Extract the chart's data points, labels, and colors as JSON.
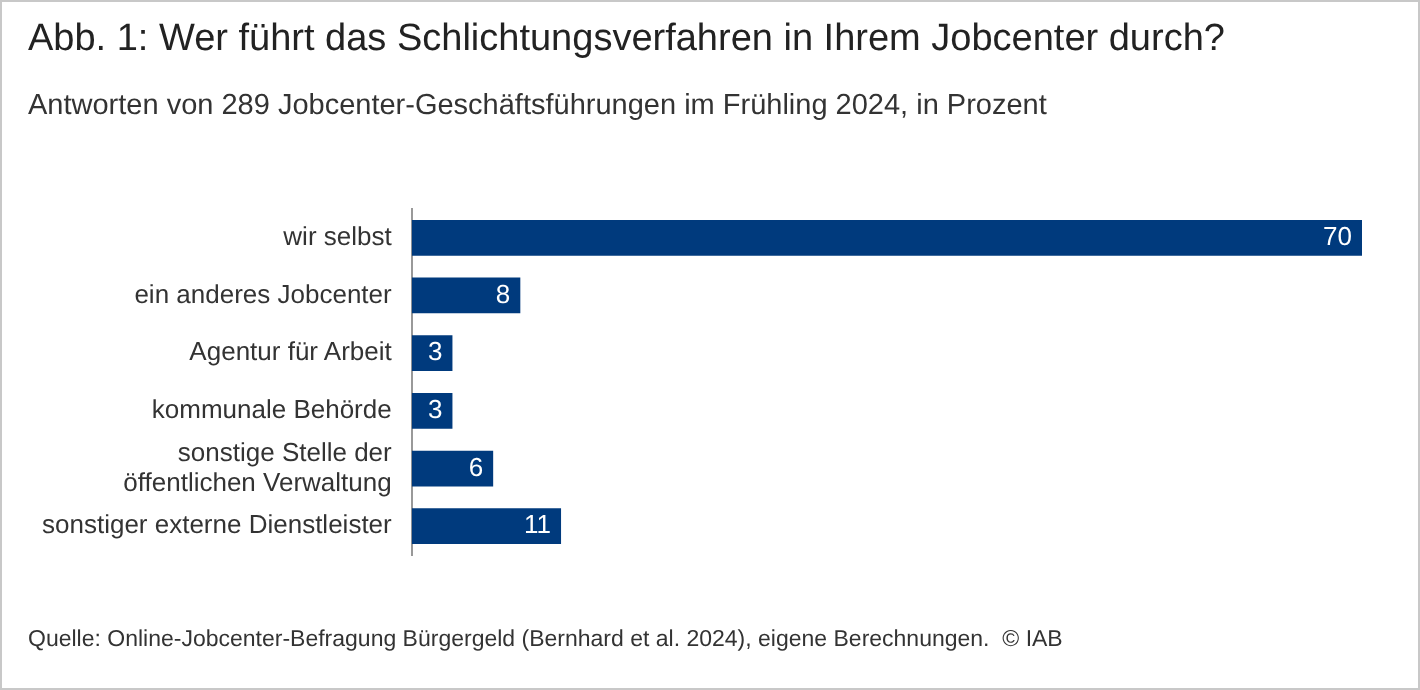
{
  "chart_data": {
    "type": "bar",
    "orientation": "horizontal",
    "title": "Abb. 1: Wer führt das Schlichtungsverfahren in Ihrem Jobcenter durch?",
    "subtitle": "Antworten von 289 Jobcenter-Geschäftsführungen im Frühling 2024, in Prozent",
    "categories": [
      "wir selbst",
      "ein anderes Jobcenter",
      "Agentur für Arbeit",
      "kommunale Behörde",
      "sonstige Stelle der öffentlichen Verwaltung",
      "sonstiger externe Dienstleister"
    ],
    "values": [
      70,
      8,
      3,
      3,
      6,
      11
    ],
    "color": "#003a7d",
    "data_labels": true,
    "grid": false,
    "legend": false,
    "tick_labels": "y",
    "annotations": [
      "Quelle: Online-Jobcenter-Befragung Bürgergeld (Bernhard et al. 2024), eigene Berechnungen.  © IAB"
    ]
  }
}
